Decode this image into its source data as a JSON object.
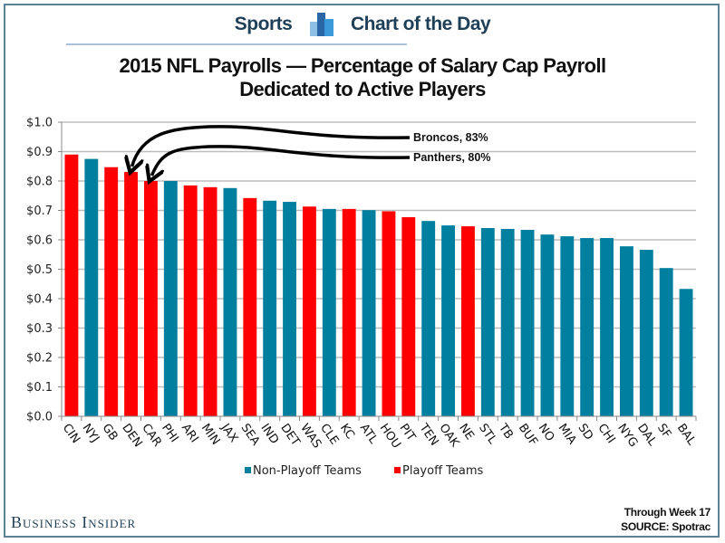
{
  "header": {
    "section_left": "Sports",
    "section_right": "Chart of the Day",
    "icon": "bar-chart-icon"
  },
  "title_line1": "2015 NFL Payrolls — Percentage of Salary Cap Payroll",
  "title_line2": "Dedicated to Active Players",
  "colors": {
    "non_playoff": "#007f9f",
    "playoff": "#ff0000",
    "frame": "#5b8296",
    "header_text": "#1f3f57"
  },
  "annotations": [
    {
      "label": "Broncos, 83%",
      "target": "DEN"
    },
    {
      "label": "Panthers, 80%",
      "target": "CAR"
    }
  ],
  "footer": {
    "brand": "Business Insider",
    "note": "Through Week 17",
    "source": "SOURCE: Spotrac"
  },
  "chart_data": {
    "type": "bar",
    "title": "2015 NFL Payrolls — Percentage of Salary Cap Payroll Dedicated to Active Players",
    "xlabel": "",
    "ylabel": "",
    "ylim": [
      0,
      1.0
    ],
    "yticks": [
      "$0.0",
      "$0.1",
      "$0.2",
      "$0.3",
      "$0.4",
      "$0.5",
      "$0.6",
      "$0.7",
      "$0.8",
      "$0.9",
      "$1.0"
    ],
    "grid": true,
    "legend_position": "bottom",
    "legend": [
      {
        "name": "Non-Playoff Teams",
        "group": "non_playoff"
      },
      {
        "name": "Playoff Teams",
        "group": "playoff"
      }
    ],
    "categories": [
      "CIN",
      "NYJ",
      "GB",
      "DEN",
      "CAR",
      "PHI",
      "ARI",
      "MIN",
      "JAX",
      "SEA",
      "IND",
      "DET",
      "WAS",
      "CLE",
      "KC",
      "ATL",
      "HOU",
      "PIT",
      "TEN",
      "OAK",
      "NE",
      "STL",
      "TB",
      "BUF",
      "NO",
      "MIA",
      "SD",
      "CHI",
      "NYG",
      "DAL",
      "SF",
      "BAL"
    ],
    "values": [
      0.89,
      0.875,
      0.847,
      0.831,
      0.8,
      0.8,
      0.785,
      0.779,
      0.776,
      0.742,
      0.733,
      0.729,
      0.713,
      0.705,
      0.705,
      0.701,
      0.697,
      0.677,
      0.664,
      0.649,
      0.646,
      0.64,
      0.637,
      0.634,
      0.618,
      0.612,
      0.606,
      0.606,
      0.578,
      0.566,
      0.504,
      0.433
    ],
    "groups": [
      "playoff",
      "non_playoff",
      "playoff",
      "playoff",
      "playoff",
      "non_playoff",
      "playoff",
      "playoff",
      "non_playoff",
      "playoff",
      "non_playoff",
      "non_playoff",
      "playoff",
      "non_playoff",
      "playoff",
      "non_playoff",
      "playoff",
      "playoff",
      "non_playoff",
      "non_playoff",
      "playoff",
      "non_playoff",
      "non_playoff",
      "non_playoff",
      "non_playoff",
      "non_playoff",
      "non_playoff",
      "non_playoff",
      "non_playoff",
      "non_playoff",
      "non_playoff",
      "non_playoff"
    ]
  }
}
